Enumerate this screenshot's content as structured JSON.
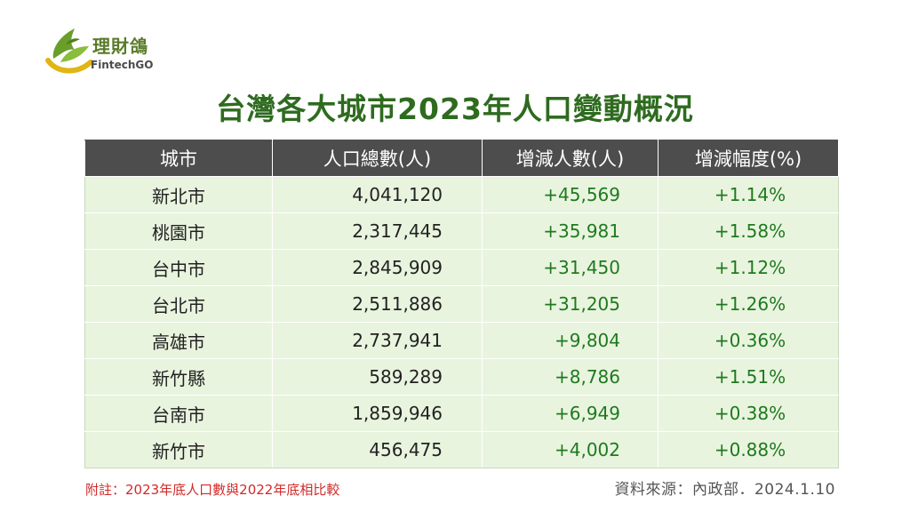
{
  "brand": {
    "name_cn": "理財鴿",
    "name_en": "FintechGO",
    "colors": {
      "leaf": "#6a9e2a",
      "swoosh": "#e0b514"
    }
  },
  "title": "台灣各大城市2023年人口變動概況",
  "chart_data": {
    "type": "table",
    "columns": [
      "城市",
      "人口總數(人)",
      "增減人數(人)",
      "增減幅度(%)"
    ],
    "rows": [
      {
        "city": "新北市",
        "total": "4,041,120",
        "change": "+45,569",
        "pct": "+1.14%"
      },
      {
        "city": "桃園市",
        "total": "2,317,445",
        "change": "+35,981",
        "pct": "+1.58%"
      },
      {
        "city": "台中市",
        "total": "2,845,909",
        "change": "+31,450",
        "pct": "+1.12%"
      },
      {
        "city": "台北市",
        "total": "2,511,886",
        "change": "+31,205",
        "pct": "+1.26%"
      },
      {
        "city": "高雄市",
        "total": "2,737,941",
        "change": "+9,804",
        "pct": "+0.36%"
      },
      {
        "city": "新竹縣",
        "total": "589,289",
        "change": "+8,786",
        "pct": "+1.51%"
      },
      {
        "city": "台南市",
        "total": "1,859,946",
        "change": "+6,949",
        "pct": "+0.38%"
      },
      {
        "city": "新竹市",
        "total": "456,475",
        "change": "+4,002",
        "pct": "+0.88%"
      }
    ],
    "colors": {
      "header_bg": "#4d4d4d",
      "row_bg": "#e9f4df",
      "positive": "#1e7a1e"
    }
  },
  "footnote": "附註：2023年底人口數與2022年底相比較",
  "source": "資料來源：內政部．2024.1.10"
}
